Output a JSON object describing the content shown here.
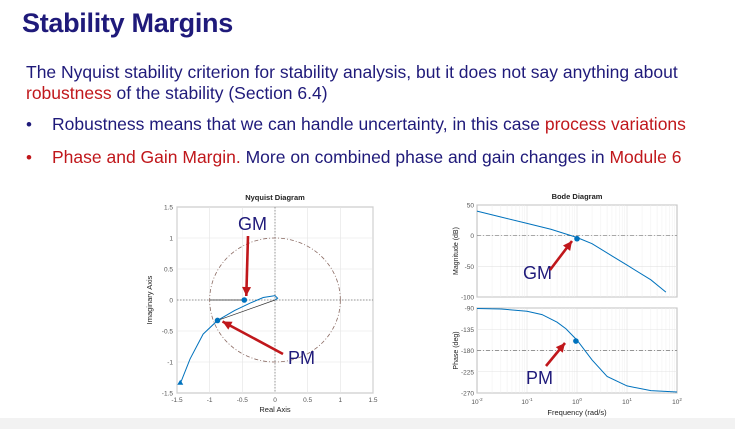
{
  "slide": {
    "title": "Stability Margins",
    "intro_part1": "The Nyquist stability criterion for stability analysis, but it does not say anything about",
    "intro_red": "robustness",
    "intro_part2": " of the stability (Section 6.4)",
    "bullets": [
      {
        "symbol": "•",
        "text": "Robustness means that we can handle uncertainty, in this case ",
        "red_text": "process variations"
      },
      {
        "symbol": "•",
        "red_lead": "Phase and Gain Margin.",
        "text": " More on combined phase and gain changes in ",
        "red_text": "Module 6"
      }
    ]
  },
  "colors": {
    "title": "#1f1a7a",
    "accent_red": "#c0171b",
    "curve": "#0072bd",
    "arrow": "#c0171b",
    "annot": "#1f1a7a"
  },
  "chart_data": [
    {
      "type": "line",
      "title": "Nyquist Diagram",
      "xlabel": "Real Axis",
      "ylabel": "Imaginary Axis",
      "xlim": [
        -1.5,
        1.5
      ],
      "ylim": [
        -1.5,
        1.5
      ],
      "xticks": [
        "-1.5",
        "-1",
        "-0.5",
        "0",
        "0.5",
        "1",
        "1.5"
      ],
      "yticks": [
        "-1.5",
        "-1",
        "-0.5",
        "0",
        "0.5",
        "1",
        "1.5"
      ],
      "grid": true,
      "unit_circle": true,
      "series": [
        {
          "points": [
            [
              -1.45,
              -1.35
            ],
            [
              -1.3,
              -0.95
            ],
            [
              -1.1,
              -0.55
            ],
            [
              -0.88,
              -0.33
            ],
            [
              -0.62,
              -0.17
            ],
            [
              -0.38,
              -0.05
            ],
            [
              -0.18,
              0.04
            ],
            [
              0.0,
              0.07
            ],
            [
              0.04,
              0.03
            ],
            [
              0.0,
              0.0
            ]
          ]
        }
      ],
      "markers": [
        {
          "name": "gain crossing",
          "x": -0.47,
          "y": 0.0
        },
        {
          "name": "phase crossing",
          "x": -0.88,
          "y": -0.33
        }
      ],
      "annotations": [
        {
          "label": "GM",
          "arrow_to": [
            -0.47,
            0.0
          ]
        },
        {
          "label": "PM",
          "arrow_to": [
            -0.88,
            -0.33
          ]
        }
      ]
    },
    {
      "type": "line",
      "title": "Bode Diagram",
      "xlabel": "Frequency  (rad/s)",
      "xscale": "log",
      "xlim": [
        0.01,
        100
      ],
      "xticks": [
        "10^-2",
        "10^-1",
        "10^0",
        "10^1",
        "10^2"
      ],
      "grid": true,
      "panels": [
        {
          "ylabel": "Magnitude (dB)",
          "ylim": [
            -100,
            50
          ],
          "yticks": [
            "50",
            "0",
            "-50",
            "-100"
          ],
          "reference_line": 0,
          "series": [
            {
              "x": [
                0.01,
                0.03,
                0.1,
                0.3,
                1,
                2,
                5,
                10,
                30,
                60
              ],
              "y": [
                40,
                30.5,
                20,
                10.5,
                -3,
                -13,
                -33,
                -48,
                -72,
                -92
              ]
            }
          ],
          "marker": {
            "x": 1,
            "y": -5
          },
          "annotation": {
            "label": "GM"
          }
        },
        {
          "ylabel": "Phase (deg)",
          "ylim": [
            -270,
            -90
          ],
          "yticks": [
            "-90",
            "-135",
            "-180",
            "-225",
            "-270"
          ],
          "reference_line": -180,
          "series": [
            {
              "x": [
                0.01,
                0.03,
                0.1,
                0.2,
                0.4,
                0.6,
                1,
                2,
                4,
                10,
                30,
                100
              ],
              "y": [
                -91,
                -92,
                -97,
                -104,
                -120,
                -134,
                -158,
                -200,
                -235,
                -255,
                -265,
                -268
              ]
            }
          ],
          "marker": {
            "x": 0.95,
            "y": -160
          },
          "annotation": {
            "label": "PM"
          }
        }
      ]
    }
  ]
}
